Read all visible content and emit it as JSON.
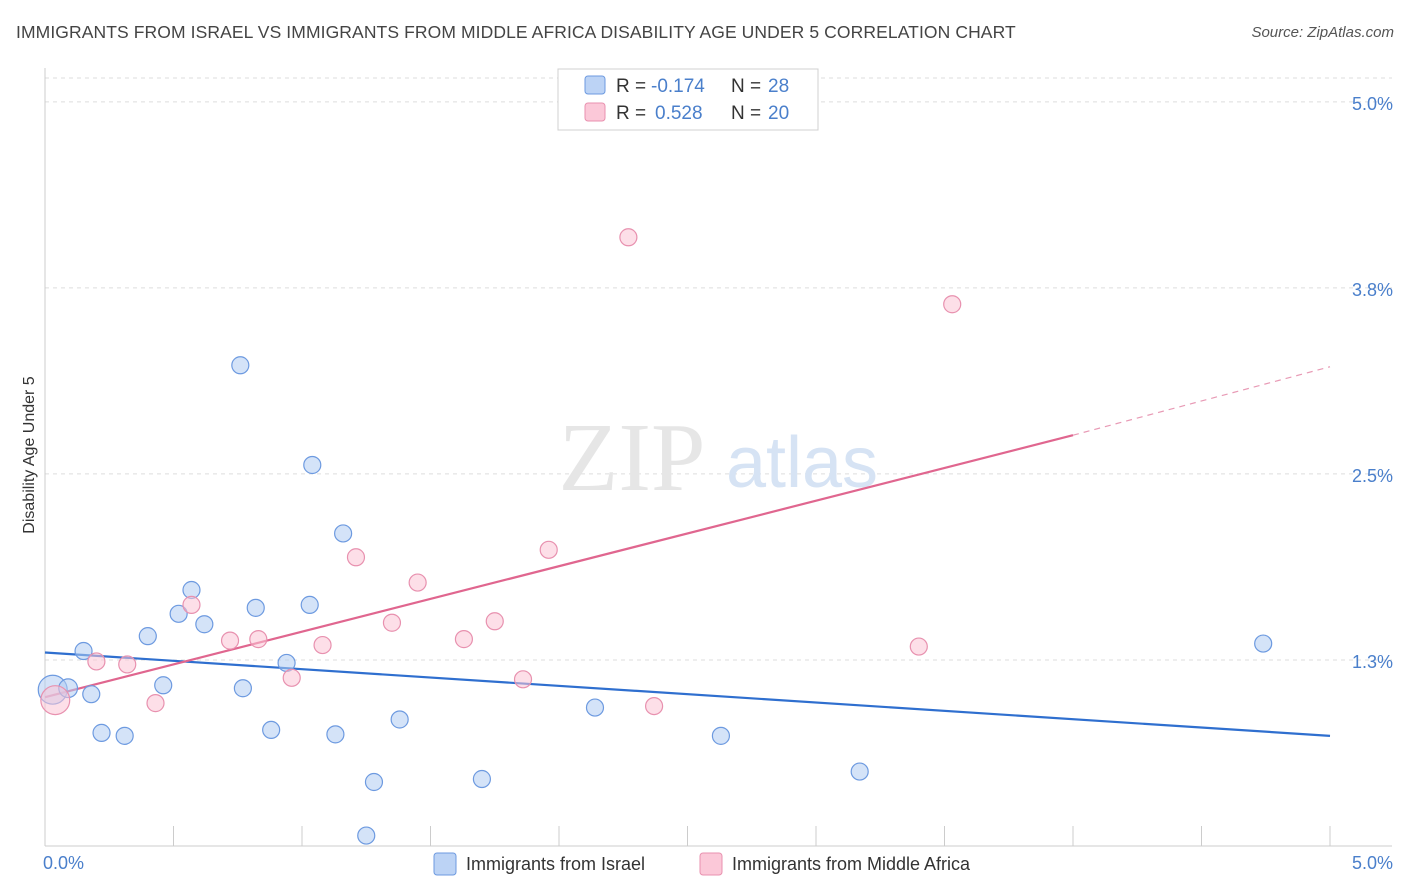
{
  "header": {
    "title": "IMMIGRANTS FROM ISRAEL VS IMMIGRANTS FROM MIDDLE AFRICA DISABILITY AGE UNDER 5 CORRELATION CHART",
    "source": "Source: ZipAtlas.com"
  },
  "watermark": {
    "zip": "ZIP",
    "atlas": "atlas"
  },
  "chart_data": {
    "type": "scatter",
    "ylabel": "Disability Age Under 5",
    "xlim": [
      0,
      5
    ],
    "ylim": [
      0,
      5.16
    ],
    "x_tick_labels": [
      "0.0%",
      "5.0%"
    ],
    "y_ticks": [
      1.25,
      2.5,
      3.75,
      5.0
    ],
    "y_tick_labels": [
      "1.3%",
      "2.5%",
      "3.8%",
      "5.0%"
    ],
    "grid": true,
    "legend_position": "bottom",
    "colors": {
      "israel": "#5b8fd9",
      "middle_africa": "#e8799f",
      "axis_text": "#4a7fcb"
    },
    "stats": [
      {
        "r_label": "R =",
        "r_value": "-0.174",
        "n_label": "N =",
        "n_value": "28"
      },
      {
        "r_label": "R =",
        "r_value": "0.528",
        "n_label": "N =",
        "n_value": "20"
      }
    ],
    "series": [
      {
        "name": "Immigrants from Israel",
        "points": [
          {
            "x": 0.03,
            "y": 1.05,
            "s": 1.7
          },
          {
            "x": 0.09,
            "y": 1.06,
            "s": 1.1
          },
          {
            "x": 0.15,
            "y": 1.31
          },
          {
            "x": 0.18,
            "y": 1.02
          },
          {
            "x": 0.22,
            "y": 0.76
          },
          {
            "x": 0.31,
            "y": 0.74
          },
          {
            "x": 0.4,
            "y": 1.41
          },
          {
            "x": 0.46,
            "y": 1.08
          },
          {
            "x": 0.52,
            "y": 1.56
          },
          {
            "x": 0.57,
            "y": 1.72
          },
          {
            "x": 0.62,
            "y": 1.49
          },
          {
            "x": 0.76,
            "y": 3.23
          },
          {
            "x": 0.77,
            "y": 1.06
          },
          {
            "x": 0.82,
            "y": 1.6
          },
          {
            "x": 0.88,
            "y": 0.78
          },
          {
            "x": 0.94,
            "y": 1.23
          },
          {
            "x": 1.03,
            "y": 1.62
          },
          {
            "x": 1.04,
            "y": 2.56
          },
          {
            "x": 1.13,
            "y": 0.75
          },
          {
            "x": 1.16,
            "y": 2.1
          },
          {
            "x": 1.25,
            "y": 0.07
          },
          {
            "x": 1.28,
            "y": 0.43
          },
          {
            "x": 1.38,
            "y": 0.85
          },
          {
            "x": 1.7,
            "y": 0.45
          },
          {
            "x": 2.14,
            "y": 0.93
          },
          {
            "x": 2.63,
            "y": 0.74
          },
          {
            "x": 3.17,
            "y": 0.5
          },
          {
            "x": 4.74,
            "y": 1.36
          }
        ]
      },
      {
        "name": "Immigrants from Middle Africa",
        "points": [
          {
            "x": 0.04,
            "y": 0.98,
            "s": 1.7
          },
          {
            "x": 0.2,
            "y": 1.24
          },
          {
            "x": 0.32,
            "y": 1.22
          },
          {
            "x": 0.43,
            "y": 0.96
          },
          {
            "x": 0.57,
            "y": 1.62
          },
          {
            "x": 0.72,
            "y": 1.38
          },
          {
            "x": 0.83,
            "y": 1.39
          },
          {
            "x": 0.96,
            "y": 1.13
          },
          {
            "x": 1.08,
            "y": 1.35
          },
          {
            "x": 1.21,
            "y": 1.94
          },
          {
            "x": 1.35,
            "y": 1.5
          },
          {
            "x": 1.45,
            "y": 1.77
          },
          {
            "x": 1.63,
            "y": 1.39
          },
          {
            "x": 1.75,
            "y": 1.51
          },
          {
            "x": 1.86,
            "y": 1.12
          },
          {
            "x": 1.96,
            "y": 1.99
          },
          {
            "x": 2.27,
            "y": 4.09
          },
          {
            "x": 2.37,
            "y": 0.94
          },
          {
            "x": 3.4,
            "y": 1.34
          },
          {
            "x": 3.53,
            "y": 3.64
          }
        ]
      }
    ],
    "trend_lines": [
      {
        "series": "Immigrants from Israel",
        "x0": 0.0,
        "y0": 1.3,
        "x1": 5.0,
        "y1": 0.74,
        "dash_from": null
      },
      {
        "series": "Immigrants from Middle Africa",
        "x0": 0.0,
        "y0": 1.0,
        "x1": 4.0,
        "y1": 2.76,
        "dash_to": 5.0,
        "dash_y": 3.22
      }
    ]
  }
}
